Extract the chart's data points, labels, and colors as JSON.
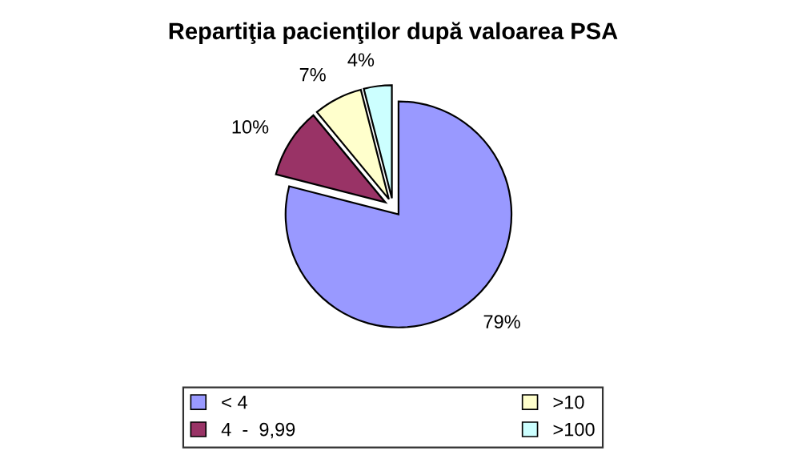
{
  "chart_data": {
    "type": "pie",
    "title": "Repartiţia pacienţilor după valoarea PSA",
    "categories": [
      "< 4",
      "4  -  9,99",
      ">10",
      ">100"
    ],
    "values": [
      79,
      10,
      7,
      4
    ],
    "value_labels": [
      "79%",
      "10%",
      "7%",
      "4%"
    ],
    "colors": [
      "#9999ff",
      "#993366",
      "#ffffcc",
      "#ccffff"
    ],
    "legend": "bottom"
  }
}
